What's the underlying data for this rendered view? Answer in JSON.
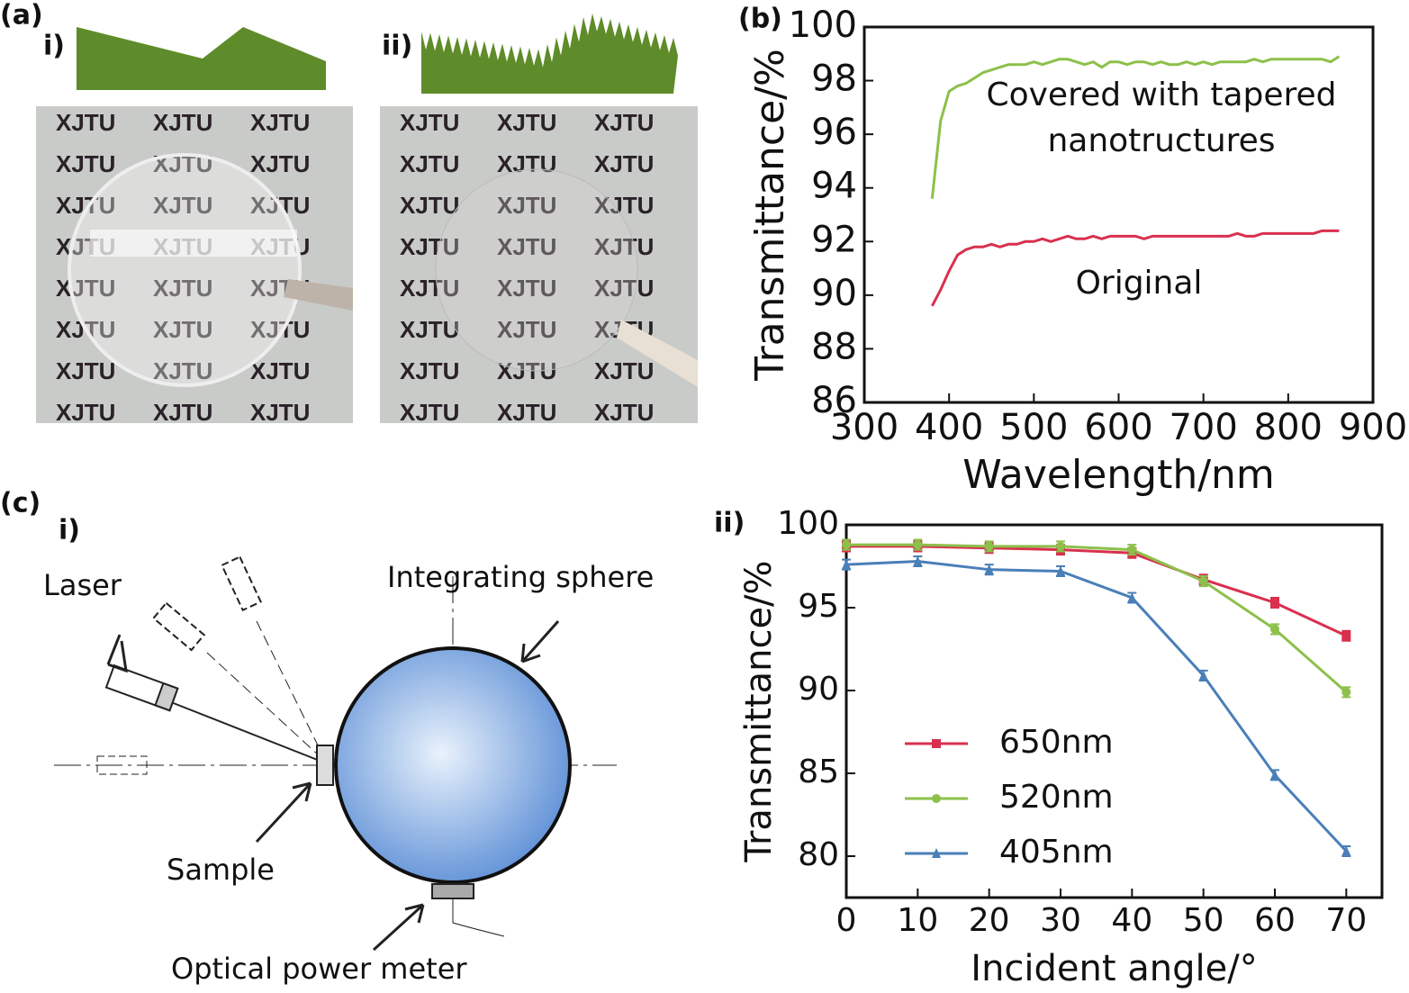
{
  "panel_a": {
    "label": "(a)",
    "sub_labels": [
      "i)",
      "ii)"
    ],
    "photo_text": "XJTU"
  },
  "panel_c": {
    "label": "(c)",
    "sub_labels": [
      "i)",
      "ii)"
    ],
    "diagram_labels": {
      "laser": "Laser",
      "sphere": "Integrating sphere",
      "sample": "Sample",
      "meter": "Optical power meter"
    }
  },
  "chart_data": [
    {
      "type": "line",
      "panel_label": "(b)",
      "x_label": "Wavelength/nm",
      "y_label": "Transmittance/%",
      "xlim": [
        300,
        900
      ],
      "xticks": [
        300,
        400,
        500,
        600,
        700,
        800,
        900
      ],
      "ylim": [
        86,
        100
      ],
      "yticks": [
        86,
        88,
        90,
        92,
        94,
        96,
        98,
        100
      ],
      "annotations": [
        "Covered with tapered",
        "nanotructures",
        "Original"
      ],
      "x": [
        380,
        390,
        400,
        410,
        420,
        430,
        440,
        450,
        460,
        470,
        480,
        490,
        500,
        510,
        520,
        530,
        540,
        550,
        560,
        570,
        580,
        590,
        600,
        610,
        620,
        630,
        640,
        650,
        660,
        670,
        680,
        690,
        700,
        710,
        720,
        730,
        740,
        750,
        760,
        770,
        780,
        790,
        800,
        810,
        820,
        830,
        840,
        850,
        860
      ],
      "series": [
        {
          "color": "#8cc04a",
          "values": [
            93.6,
            96.5,
            97.6,
            97.8,
            97.9,
            98.1,
            98.3,
            98.4,
            98.5,
            98.6,
            98.6,
            98.6,
            98.7,
            98.6,
            98.7,
            98.8,
            98.8,
            98.7,
            98.6,
            98.7,
            98.5,
            98.7,
            98.7,
            98.6,
            98.7,
            98.7,
            98.6,
            98.7,
            98.6,
            98.6,
            98.7,
            98.6,
            98.7,
            98.6,
            98.7,
            98.7,
            98.7,
            98.7,
            98.8,
            98.7,
            98.8,
            98.8,
            98.8,
            98.8,
            98.8,
            98.8,
            98.8,
            98.7,
            98.9
          ]
        },
        {
          "color": "#d9304e",
          "values": [
            89.6,
            90.2,
            90.9,
            91.5,
            91.7,
            91.8,
            91.8,
            91.9,
            91.8,
            91.9,
            91.9,
            92.0,
            92.0,
            92.1,
            92.0,
            92.1,
            92.2,
            92.1,
            92.1,
            92.2,
            92.1,
            92.2,
            92.2,
            92.2,
            92.2,
            92.1,
            92.2,
            92.2,
            92.2,
            92.2,
            92.2,
            92.2,
            92.2,
            92.2,
            92.2,
            92.2,
            92.3,
            92.2,
            92.2,
            92.3,
            92.3,
            92.3,
            92.3,
            92.3,
            92.3,
            92.3,
            92.4,
            92.4,
            92.4
          ]
        }
      ]
    },
    {
      "type": "line",
      "x_label": "Incident angle/°",
      "y_label": "Transmittance/%",
      "xlim": [
        0,
        75
      ],
      "xticks": [
        0,
        10,
        20,
        30,
        40,
        50,
        60,
        70
      ],
      "ylim": [
        77.5,
        100
      ],
      "yticks": [
        80,
        85,
        90,
        95,
        100
      ],
      "legend": "lower left",
      "x": [
        0,
        10,
        20,
        30,
        40,
        50,
        60,
        70
      ],
      "series": [
        {
          "name": "650nm",
          "color": "#d9304e",
          "marker": "square",
          "values": [
            98.7,
            98.7,
            98.6,
            98.5,
            98.3,
            96.7,
            95.3,
            93.3
          ],
          "errors": [
            0.3,
            0.3,
            0.3,
            0.3,
            0.3,
            0.3,
            0.3,
            0.3
          ]
        },
        {
          "name": "520nm",
          "color": "#8cc04a",
          "marker": "circle",
          "values": [
            98.8,
            98.8,
            98.7,
            98.7,
            98.5,
            96.6,
            93.7,
            89.9
          ],
          "errors": [
            0.3,
            0.3,
            0.3,
            0.3,
            0.3,
            0.3,
            0.3,
            0.3
          ]
        },
        {
          "name": "405nm",
          "color": "#4a7fb8",
          "marker": "triangle",
          "values": [
            97.6,
            97.8,
            97.3,
            97.2,
            95.6,
            90.9,
            84.9,
            80.3
          ],
          "errors": [
            0.3,
            0.3,
            0.3,
            0.3,
            0.3,
            0.3,
            0.3,
            0.3
          ]
        }
      ]
    }
  ]
}
